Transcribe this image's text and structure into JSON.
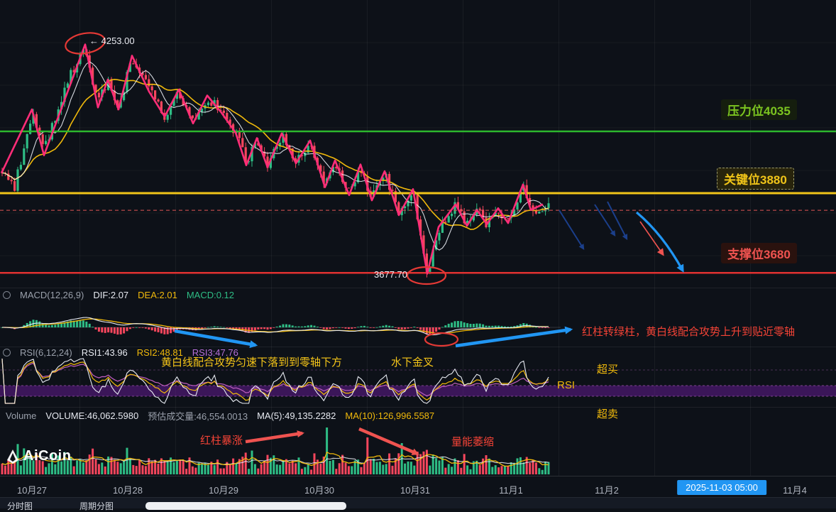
{
  "watermark": {
    "brand": "AiCoin"
  },
  "colors": {
    "background": "#0d1118",
    "candle_up": "#2ebd85",
    "candle_down": "#f6465d",
    "ma_fast_white": "#ebeef5",
    "ma_slow_yellow": "#f0b90b",
    "trend_line_pink": "#ff2d78",
    "level_resistance_green": "#2db82d",
    "level_key_yellow": "#f0c419",
    "level_support_red": "#e03131",
    "current_price_dashed_red": "#e05555",
    "annotation_blue": "#2196f3",
    "annotation_dark_blue": "#1b3f8b",
    "annotation_red": "#ef5350",
    "rsi_band_purple": "#6a1b9a",
    "axis_text": "#aeb3bd",
    "timestamp_badge_bg": "#2196f3"
  },
  "main_chart": {
    "peak_label": "← 4253.00",
    "low_label": "3677.70",
    "levels": {
      "resistance": {
        "label": "压力位4035",
        "price": 4035
      },
      "key": {
        "label": "关键位3880",
        "price": 3880
      },
      "support": {
        "label": "支撑位3680",
        "price": 3680
      }
    }
  },
  "macd": {
    "title": "MACD(12,26,9)",
    "dif": "DIF:2.07",
    "dea": "DEA:2.01",
    "macd": "MACD:0.12",
    "note_green_turn": "红柱转绿柱，黄白线配合攻势上升到贴近零轴",
    "note_fall": "黄白线配合攻势匀速下落到到零轴下方",
    "note_cross": "水下金叉"
  },
  "rsi": {
    "title": "RSI(6,12,24)",
    "rsi1": "RSI1:43.96",
    "rsi2": "RSI2:48.81",
    "rsi3": "RSI3:47.76",
    "overbought": "超买",
    "oversold": "超卖",
    "label": "RSI"
  },
  "volume": {
    "title": "Volume",
    "volume": "VOLUME:46,062.5980",
    "estimated": "预估成交量:46,554.0013",
    "ma5": "MA(5):49,135.2282",
    "ma10": "MA(10):126,996.5587",
    "note_spike": "红柱暴涨",
    "note_shrink": "量能萎缩"
  },
  "time_axis": {
    "labels": [
      "10月27",
      "10月28",
      "10月29",
      "10月30",
      "10月31",
      "11月1",
      "11月2"
    ],
    "highlight": "2025-11-03 05:00",
    "last": "11月4"
  },
  "bottom_bar": {
    "tab1": "分时图",
    "tab2": "周期分图"
  },
  "chart_data": {
    "type": "candlestick",
    "x_axis": [
      "10月27",
      "10月28",
      "10月29",
      "10月30",
      "10月31",
      "11月1",
      "11月2",
      "11月4"
    ],
    "visible_price_range": [
      3650,
      4300
    ],
    "price_levels": {
      "resistance": 4035,
      "key": 3880,
      "support": 3680,
      "current_dashed": 3837
    },
    "peak_price": 4253.0,
    "low_price": 3677.7,
    "indicators": {
      "macd": {
        "params": [
          12,
          26,
          9
        ],
        "dif": 2.07,
        "dea": 2.01,
        "macd": 0.12
      },
      "rsi": {
        "params": [
          6,
          12,
          24
        ],
        "rsi1": 43.96,
        "rsi2": 48.81,
        "rsi3": 47.76
      },
      "volume": {
        "current": 46062.598,
        "estimated": 46554.0013,
        "ma5": 49135.2282,
        "ma10": 126996.5587
      }
    },
    "price_path": [
      [
        0,
        3935
      ],
      [
        20,
        3890
      ],
      [
        45,
        4085
      ],
      [
        62,
        3985
      ],
      [
        95,
        4160
      ],
      [
        120,
        4253
      ],
      [
        137,
        4105
      ],
      [
        152,
        4160
      ],
      [
        167,
        4095
      ],
      [
        186,
        4220
      ],
      [
        210,
        4140
      ],
      [
        232,
        4075
      ],
      [
        252,
        4135
      ],
      [
        272,
        4060
      ],
      [
        292,
        4120
      ],
      [
        312,
        4085
      ],
      [
        332,
        4035
      ],
      [
        347,
        3955
      ],
      [
        362,
        4015
      ],
      [
        377,
        3950
      ],
      [
        397,
        4028
      ],
      [
        417,
        3958
      ],
      [
        437,
        4008
      ],
      [
        458,
        3898
      ],
      [
        472,
        3958
      ],
      [
        492,
        3878
      ],
      [
        508,
        3948
      ],
      [
        524,
        3865
      ],
      [
        542,
        3932
      ],
      [
        562,
        3828
      ],
      [
        582,
        3888
      ],
      [
        602,
        3680
      ],
      [
        618,
        3790
      ],
      [
        642,
        3850
      ],
      [
        658,
        3800
      ],
      [
        672,
        3835
      ],
      [
        686,
        3805
      ],
      [
        702,
        3840
      ],
      [
        716,
        3808
      ],
      [
        737,
        3900
      ],
      [
        750,
        3835
      ],
      [
        775,
        3848
      ]
    ],
    "trend_line": [
      [
        2,
        3930
      ],
      [
        45,
        4090
      ],
      [
        62,
        3975
      ],
      [
        120,
        4253
      ],
      [
        138,
        4095
      ],
      [
        152,
        4165
      ],
      [
        167,
        4090
      ],
      [
        186,
        4225
      ],
      [
        210,
        4135
      ],
      [
        232,
        4072
      ],
      [
        252,
        4140
      ],
      [
        272,
        4055
      ],
      [
        292,
        4125
      ],
      [
        312,
        4082
      ],
      [
        332,
        4032
      ],
      [
        347,
        3950
      ],
      [
        362,
        4018
      ],
      [
        377,
        3945
      ],
      [
        397,
        4030
      ],
      [
        417,
        3955
      ],
      [
        437,
        4012
      ],
      [
        458,
        3895
      ],
      [
        472,
        3962
      ],
      [
        492,
        3875
      ],
      [
        508,
        3952
      ],
      [
        524,
        3862
      ],
      [
        542,
        3935
      ],
      [
        562,
        3825
      ],
      [
        582,
        3890
      ],
      [
        602,
        3678
      ],
      [
        618,
        3795
      ],
      [
        642,
        3852
      ],
      [
        658,
        3798
      ],
      [
        672,
        3838
      ],
      [
        686,
        3802
      ],
      [
        702,
        3842
      ],
      [
        716,
        3805
      ],
      [
        737,
        3902
      ],
      [
        748,
        3838
      ],
      [
        765,
        3852
      ]
    ],
    "volume_spikes": [
      [
        460,
        66
      ],
      [
        516,
        52
      ],
      [
        566,
        44
      ],
      [
        588,
        32
      ],
      [
        610,
        28
      ]
    ],
    "seed": 20251103
  }
}
